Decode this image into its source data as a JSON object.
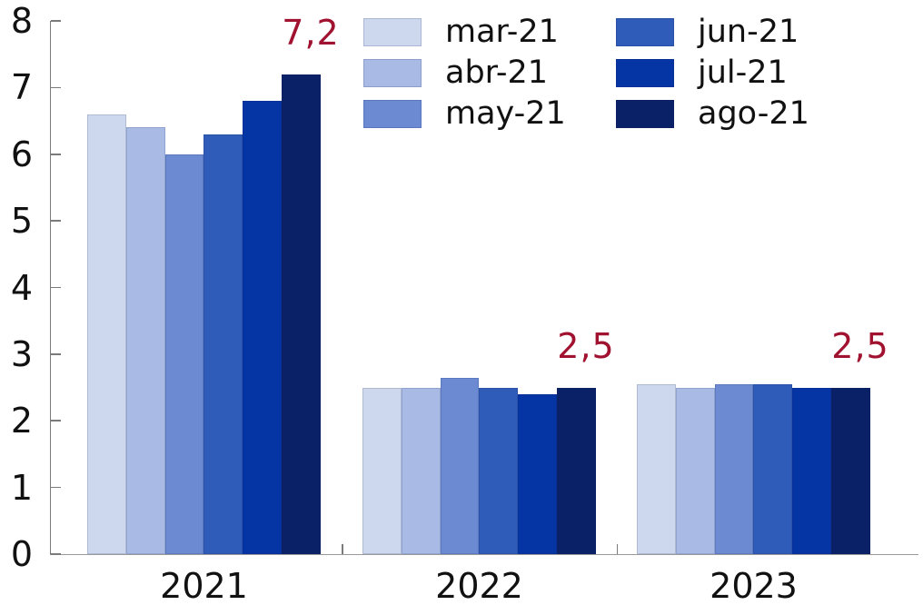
{
  "chart_data": {
    "type": "bar",
    "title": "",
    "xlabel": "",
    "ylabel": "",
    "categories": [
      "2021",
      "2022",
      "2023"
    ],
    "series": [
      {
        "name": "mar-21",
        "color": "#cdd8ee",
        "values": [
          6.6,
          2.5,
          2.55
        ]
      },
      {
        "name": "abr-21",
        "color": "#a9bbe5",
        "values": [
          6.4,
          2.5,
          2.5
        ]
      },
      {
        "name": "may-21",
        "color": "#6b8ad2",
        "values": [
          6.0,
          2.65,
          2.55
        ]
      },
      {
        "name": "jun-21",
        "color": "#2e5cb8",
        "values": [
          6.3,
          2.5,
          2.55
        ]
      },
      {
        "name": "jul-21",
        "color": "#0535a5",
        "values": [
          6.8,
          2.4,
          2.5
        ]
      },
      {
        "name": "ago-21",
        "color": "#0b2167",
        "values": [
          7.2,
          2.5,
          2.5
        ]
      }
    ],
    "annotations": [
      {
        "category": "2021",
        "text": "7,2",
        "value": 7.2
      },
      {
        "category": "2022",
        "text": "2,5",
        "value": 2.5
      },
      {
        "category": "2023",
        "text": "2,5",
        "value": 2.5
      }
    ],
    "annotation_color": "#a0122f",
    "ylim": [
      0,
      8
    ],
    "ytick_step": 1,
    "grid": false,
    "legend_position": "upper center-right, 2 columns of 3",
    "axis_color": "#7a7a7a"
  }
}
